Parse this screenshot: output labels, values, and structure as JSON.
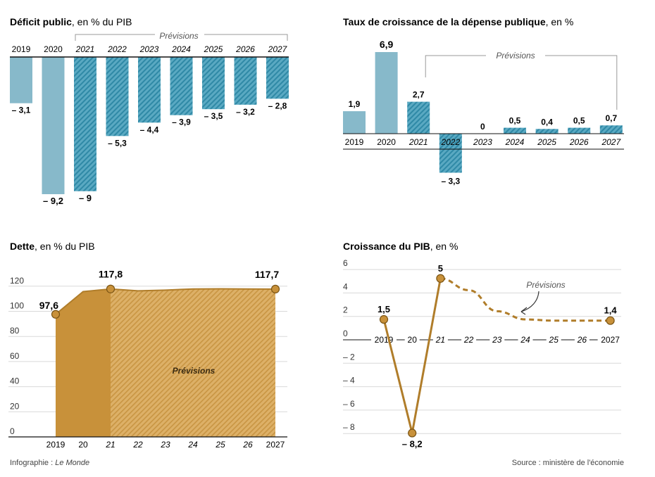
{
  "charts": {
    "deficit": {
      "title_bold": "Déficit public",
      "title_rest": ", en % du PIB",
      "forecast_label": "Prévisions"
    },
    "spending": {
      "title_bold": "Taux de croissance de la dépense publique",
      "title_rest": ", en %",
      "forecast_label": "Prévisions"
    },
    "debt": {
      "title_bold": "Dette",
      "title_rest": ", en % du PIB",
      "forecast_label": "Prévisions"
    },
    "gdp": {
      "title_bold": "Croissance du PIB",
      "title_rest": ", en %",
      "forecast_label": "Prévisions"
    }
  },
  "footer": {
    "credit_prefix": "Infographie : ",
    "credit_name": "Le Monde",
    "source": "Source : ministère de l'économie"
  },
  "colors": {
    "actual_blue": "#87b9ca",
    "forecast_blue": "#4fa3bd",
    "actual_gold": "#c8913a",
    "forecast_gold": "#d9a550",
    "line_gold": "#b07d2a",
    "grid": "#d9d9d9",
    "axis": "#111111",
    "bracket": "#999999"
  },
  "chart_data": [
    {
      "type": "bar",
      "title": "Déficit public, en % du PIB",
      "categories": [
        "2019",
        "2020",
        "2021",
        "2022",
        "2023",
        "2024",
        "2025",
        "2026",
        "2027"
      ],
      "values": [
        -3.1,
        -9.2,
        -9,
        -5.3,
        -4.4,
        -3.9,
        -3.5,
        -3.2,
        -2.8
      ],
      "value_labels": [
        "– 3,1",
        "– 9,2",
        "– 9",
        "– 5,3",
        "– 4,4",
        "– 3,9",
        "– 3,5",
        "– 3,2",
        "– 2,8"
      ],
      "forecast_from": "2021",
      "annotation": "Prévisions",
      "xlabel": "",
      "ylabel": ""
    },
    {
      "type": "bar",
      "title": "Taux de croissance de la dépense publique, en %",
      "categories": [
        "2019",
        "2020",
        "2021",
        "2022",
        "2023",
        "2024",
        "2025",
        "2026",
        "2027"
      ],
      "values": [
        1.9,
        6.9,
        2.7,
        -3.3,
        0,
        0.5,
        0.4,
        0.5,
        0.7
      ],
      "value_labels": [
        "1,9",
        "6,9",
        "2,7",
        "– 3,3",
        "0",
        "0,5",
        "0,4",
        "0,5",
        "0,7"
      ],
      "forecast_from": "2021",
      "annotation": "Prévisions",
      "xlabel": "",
      "ylabel": ""
    },
    {
      "type": "area",
      "title": "Dette, en % du PIB",
      "x": [
        2019,
        2020,
        2021,
        2022,
        2023,
        2024,
        2025,
        2026,
        2027
      ],
      "x_tick_labels": [
        "2019",
        "20",
        "21",
        "22",
        "23",
        "24",
        "25",
        "26",
        "2027"
      ],
      "values": [
        97.6,
        115.7,
        117.8,
        116.3,
        116.9,
        117.8,
        117.9,
        117.8,
        117.7
      ],
      "value_labels": {
        "2019": "97,6",
        "2021": "117,8",
        "2027": "117,7"
      },
      "y_ticks": [
        0,
        20,
        40,
        60,
        80,
        100,
        120
      ],
      "ylim": [
        0,
        130
      ],
      "forecast_from": 2021,
      "annotation": "Prévisions",
      "grid": true,
      "xlabel": "",
      "ylabel": ""
    },
    {
      "type": "line",
      "title": "Croissance du PIB, en %",
      "x": [
        2019,
        2020,
        2021,
        2022,
        2023,
        2024,
        2025,
        2026,
        2027
      ],
      "x_tick_labels": [
        "2019",
        "20",
        "21",
        "22",
        "23",
        "24",
        "25",
        "26",
        "2027"
      ],
      "values": [
        1.5,
        -8.2,
        5,
        4,
        2.2,
        1.5,
        1.4,
        1.4,
        1.4
      ],
      "value_labels": {
        "2019": "1,5",
        "2020": "– 8,2",
        "2021": "5",
        "2027": "1,4"
      },
      "y_ticks": [
        6,
        4,
        2,
        0,
        -2,
        -4,
        -6,
        -8
      ],
      "y_tick_labels": [
        "6",
        "4",
        "2",
        "0",
        "– 2",
        "– 4",
        "– 6",
        "– 8"
      ],
      "ylim": [
        -9,
        6.5
      ],
      "forecast_from": 2021,
      "annotation": "Prévisions",
      "grid": true,
      "xlabel": "",
      "ylabel": ""
    }
  ]
}
